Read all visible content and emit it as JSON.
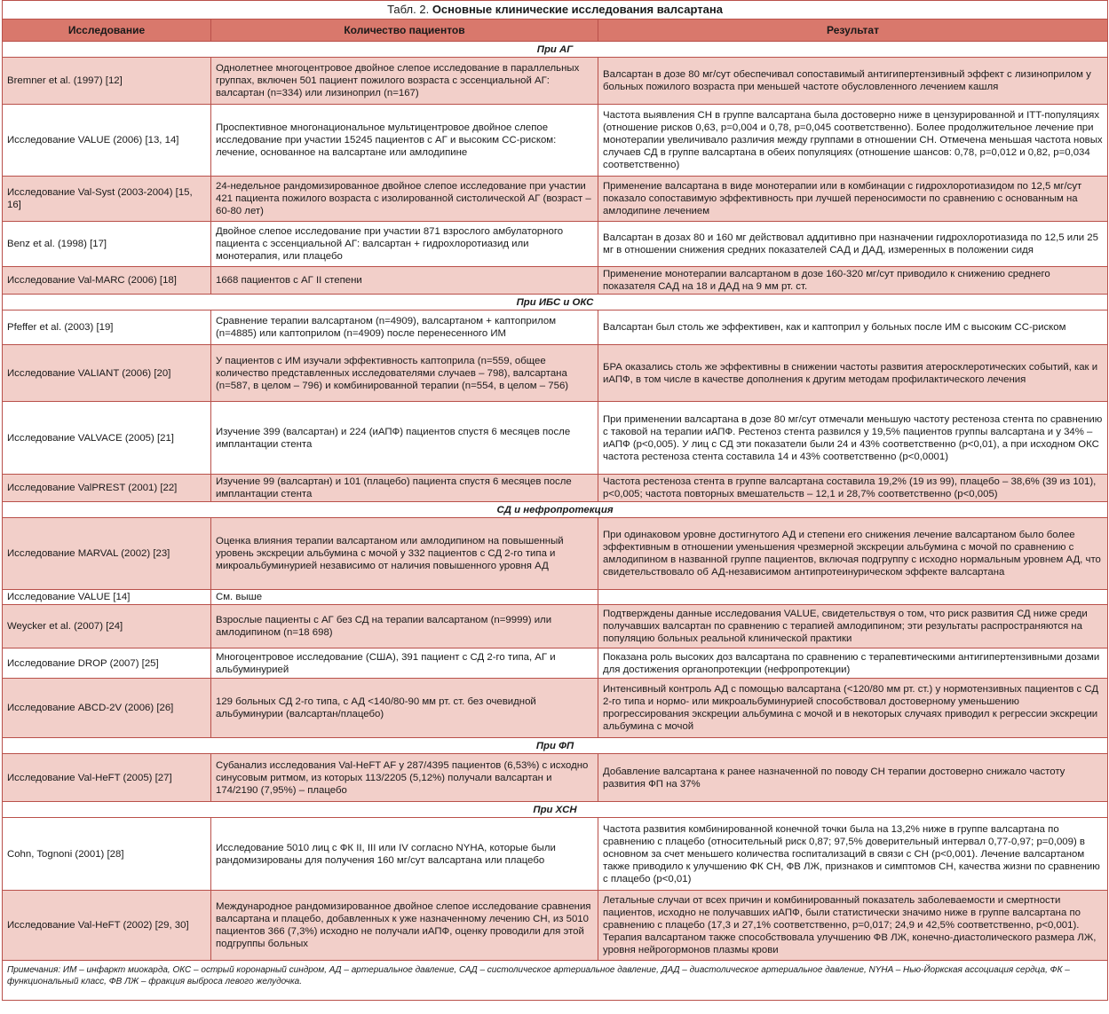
{
  "title_prefix": "Табл. 2.",
  "title": "Основные клинические исследования валсартана",
  "colors": {
    "header": "#d9786c",
    "row_alt": "#f2cfc9",
    "border": "#b9504a"
  },
  "headers": [
    "Исследование",
    "Количество пациентов",
    "Результат"
  ],
  "sections": [
    {
      "title": "При АГ",
      "rows": [
        {
          "study": "Bremner et al. (1997) [12]",
          "patients": "Однолетнее многоцентровое двойное слепое исследование в параллельных группах, включен 501 пациент пожилого возраста с эссенциальной АГ: валсартан (n=334) или лизиноприл (n=167)",
          "result": "Валсартан в дозе 80 мг/сут обеспечивал сопоставимый антигипертензивный эффект с лизиноприлом у больных пожилого возраста при меньшей частоте обусловленного лечением кашля"
        },
        {
          "study": "Исследование VALUE (2006) [13, 14]",
          "patients": "Проспективное многонациональное мультицентровое двойное слепое исследование при участии 15245 пациентов с АГ и высоким СС-риском: лечение, основанное на валсартане или амлодипине",
          "result": "Частота выявления СН в группе валсартана была достоверно ниже в цензурированной и ITT-популяциях (отношение рисков 0,63, p=0,004 и 0,78, p=0,045 соответственно). Более продолжительное лечение при монотерапии увеличивало различия между группами в отношении СН. Отмечена меньшая частота новых случаев СД в группе валсартана в обеих популяциях (отношение шансов: 0,78, p=0,012 и 0,82, p=0,034 соответственно)"
        },
        {
          "study": "Исследование Val-Syst (2003-2004) [15, 16]",
          "patients": "24-недельное рандомизированное двойное слепое исследование при участии 421 пациента пожилого возраста с изолированной систолической АГ (возраст – 60-80 лет)",
          "result": "Применение валсартана в виде монотерапии или в комбинации с гидрохлоротиазидом по 12,5 мг/сут показало сопоставимую эффективность при лучшей переносимости по сравнению с основанным на амлодипине лечением"
        },
        {
          "study": "Benz et al. (1998) [17]",
          "patients": "Двойное слепое исследование при участии 871 взрослого амбулаторного пациента с эссенциальной АГ: валсартан + гидрохлоротиазид или монотерапия, или плацебо",
          "result": "Валсартан в дозах 80 и 160 мг действовал аддитивно при назначении гидрохлоротиазида по 12,5 или 25 мг в отношении снижения средних показателей САД и ДАД, измеренных в положении сидя"
        },
        {
          "study": "Исследование Val-MARC (2006) [18]",
          "patients": "1668 пациентов с АГ II степени",
          "result": "Применение монотерапии валсартаном в дозе 160-320 мг/сут приводило к снижению среднего показателя САД на 18 и ДАД на 9 мм рт. ст."
        }
      ]
    },
    {
      "title": "При ИБС и ОКС",
      "rows": [
        {
          "study": "Pfeffer et al. (2003) [19]",
          "patients": "Сравнение терапии валсартаном (n=4909), валсартаном + каптоприлом (n=4885) или каптоприлом (n=4909) после перенесенного ИМ",
          "result": "Валсартан был столь же эффективен, как и каптоприл у больных после ИМ с высоким СС-риском"
        },
        {
          "study": "Исследование VALIANT (2006) [20]",
          "patients": "У пациентов с ИМ изучали эффективность каптоприла (n=559, общее количество представленных исследователями случаев – 798), валсартана (n=587, в целом – 796) и комбинированной терапии (n=554, в целом – 756)",
          "result": "БРА оказались столь же эффективны в снижении частоты развития атеросклеротических событий, как и иАПФ, в том числе в качестве дополнения к другим методам профилактического лечения"
        },
        {
          "study": "Исследование VALVACE (2005) [21]",
          "patients": "Изучение 399 (валсартан) и 224 (иАПФ) пациентов спустя 6 месяцев после имплантации стента",
          "result": "При применении валсартана в дозе 80 мг/сут отмечали меньшую частоту рестеноза стента по сравнению с таковой на терапии иАПФ. Рестеноз стента развился у 19,5% пациентов группы валсартана и у 34% – иАПФ (p<0,005). У лиц с СД эти показатели были 24 и 43% соответственно (p<0,01), а при исходном ОКС частота рестеноза стента составила 14 и 43% соответственно (p<0,0001)"
        },
        {
          "study": "Исследование ValPREST (2001) [22]",
          "patients": "Изучение 99 (валсартан) и 101 (плацебо) пациента спустя 6 месяцев после имплантации стента",
          "result": "Частота рестеноза стента в группе валсартана составила 19,2% (19 из 99), плацебо – 38,6% (39 из 101), p<0,005; частота повторных вмешательств – 12,1 и 28,7% соответственно (p<0,005)"
        }
      ]
    },
    {
      "title": "СД и нефропротекция",
      "rows": [
        {
          "study": "Исследование MARVAL (2002) [23]",
          "patients": "Оценка влияния терапии валсартаном или амлодипином на повышенный уровень экскреции альбумина с мочой у 332 пациентов с СД 2-го типа и микроальбуминурией независимо от наличия повышенного уровня АД",
          "result": "При одинаковом уровне достигнутого АД и степени его снижения лечение валсартаном было более эффективным в отношении уменьшения чрезмерной экскреции альбумина с мочой по сравнению с амлодипином в названной группе пациентов, включая подгруппу с исходно нормальным уровнем АД, что свидетельствовало об АД-независимом антипротеинурическом эффекте валсартана"
        },
        {
          "study": "Исследование VALUE [14]",
          "patients": "См. выше",
          "result": ""
        },
        {
          "study": "Weycker et al. (2007) [24]",
          "patients": "Взрослые пациенты с АГ без СД на терапии валсартаном (n=9999) или амлодипином (n=18 698)",
          "result": "Подтверждены данные исследования VALUE, свидетельствуя о том, что риск развития СД ниже среди получавших валсартан по сравнению с терапией амлодипином; эти результаты распространяются на популяцию больных реальной клинической практики"
        },
        {
          "study": "Исследование DROP (2007) [25]",
          "patients": "Многоцентровое исследование (США), 391 пациент с СД 2-го типа, АГ и альбуминурией",
          "result": "Показана роль высоких доз валсартана по сравнению с терапевтическими антигипертензивными дозами для достижения органопротекции (нефропротекции)"
        },
        {
          "study": "Исследование ABCD-2V (2006) [26]",
          "patients": "129 больных СД 2-го типа, с АД <140/80-90 мм рт. ст. без очевидной альбуминурии (валсартан/плацебо)",
          "result": "Интенсивный контроль АД с помощью валсартана (<120/80 мм рт. ст.) у нормотензивных пациентов с СД 2-го типа и нормо- или микроальбуминурией способствовал достоверному уменьшению прогрессирования экскреции альбумина с мочой и в некоторых случаях приводил к регрессии экскреции альбумина с мочой"
        }
      ]
    },
    {
      "title": "При ФП",
      "rows": [
        {
          "study": "Исследование Val-HeFT (2005) [27]",
          "patients": "Субанализ исследования Val-HeFT AF у 287/4395 пациентов (6,53%) с исходно синусовым ритмом, из которых 113/2205 (5,12%) получали валсартан и 174/2190 (7,95%) – плацебо",
          "result": "Добавление валсартана к ранее назначенной по поводу СН терапии достоверно снижало частоту развития ФП на 37%"
        }
      ]
    },
    {
      "title": "При ХСН",
      "rows": [
        {
          "study": "Cohn, Tognoni (2001) [28]",
          "patients": "Исследование 5010 лиц с ФК II, III или IV согласно NYHA, которые были рандомизированы для получения 160 мг/сут валсартана или плацебо",
          "result": "Частота развития комбинированной конечной точки была на 13,2% ниже в группе валсартана по сравнению с плацебо (относительный риск 0,87; 97,5% доверительный интервал 0,77-0,97; p=0,009) в основном за счет меньшего количества госпитализаций в связи с СН (p<0,001). Лечение валсартаном также приводило к улучшению ФК СН, ФВ ЛЖ, признаков и симптомов СН, качества жизни по сравнению с плацебо (p<0,01)"
        },
        {
          "study": "Исследование Val-HeFT (2002) [29, 30]",
          "patients": "Международное рандомизированное двойное слепое исследование сравнения валсартана и плацебо, добавленных к уже назначенному лечению СН, из 5010 пациентов 366 (7,3%) исходно не получали иАПФ, оценку проводили для этой подгруппы больных",
          "result": "Летальные случаи от всех причин и комбинированный показатель заболеваемости и смертности пациентов, исходно не получавших иАПФ, были статистически значимо ниже в группе валсартана по сравнению с плацебо (17,3 и 27,1% соответственно, p=0,017; 24,9 и 42,5% соответственно, p<0,001). Терапия валсартаном также способствовала улучшению ФВ ЛЖ, конечно-диастолического размера ЛЖ, уровня нейрогормонов плазмы крови"
        }
      ]
    }
  ],
  "notes": "Примечания: ИМ – инфаркт миокарда, ОКС – острый коронарный синдром, АД – артериальное давление, САД – систолическое артериальное давление, ДАД – диастолическое артериальное давление, NYHA – Нью-Йоркская ассоциация сердца, ФК – функциональный класс, ФВ ЛЖ – фракция выброса левого желудочка."
}
